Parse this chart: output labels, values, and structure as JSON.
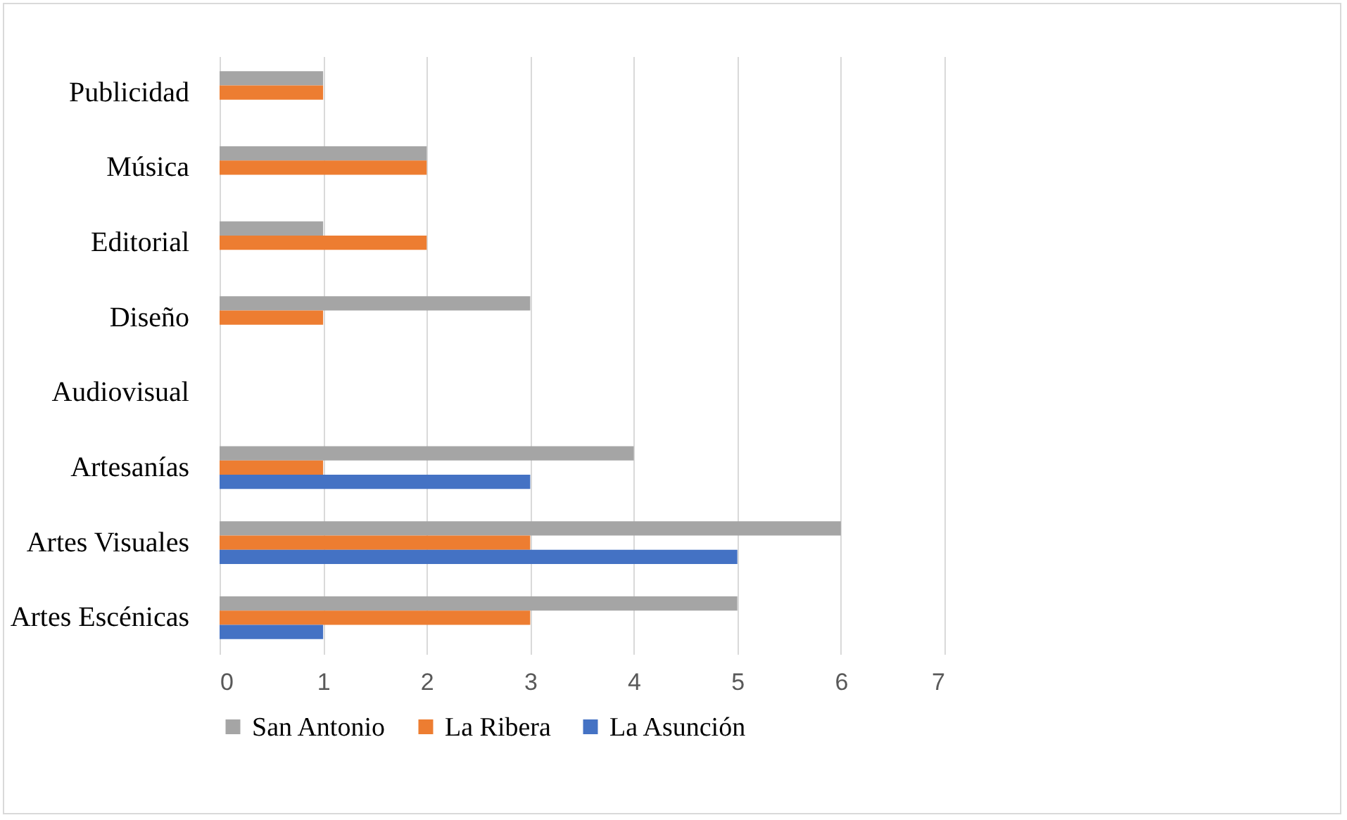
{
  "chart_data": {
    "type": "bar",
    "orientation": "horizontal",
    "categories": [
      "Publicidad",
      "Música",
      "Editorial",
      "Diseño",
      "Audiovisual",
      "Artesanías",
      "Artes Visuales",
      "Artes Escénicas"
    ],
    "series": [
      {
        "name": "San Antonio",
        "color": "#a5a5a5",
        "values": [
          1,
          2,
          1,
          3,
          null,
          4,
          6,
          5
        ]
      },
      {
        "name": "La Ribera",
        "color": "#ed7d31",
        "values": [
          1,
          2,
          2,
          1,
          null,
          1,
          3,
          3
        ]
      },
      {
        "name": "La Asunción",
        "color": "#4472c4",
        "values": [
          null,
          null,
          null,
          null,
          null,
          3,
          5,
          1
        ]
      }
    ],
    "xlim": [
      0,
      7
    ],
    "xticks": [
      0,
      1,
      2,
      3,
      4,
      5,
      6,
      7
    ],
    "grid": "x",
    "legend": "bottom"
  }
}
